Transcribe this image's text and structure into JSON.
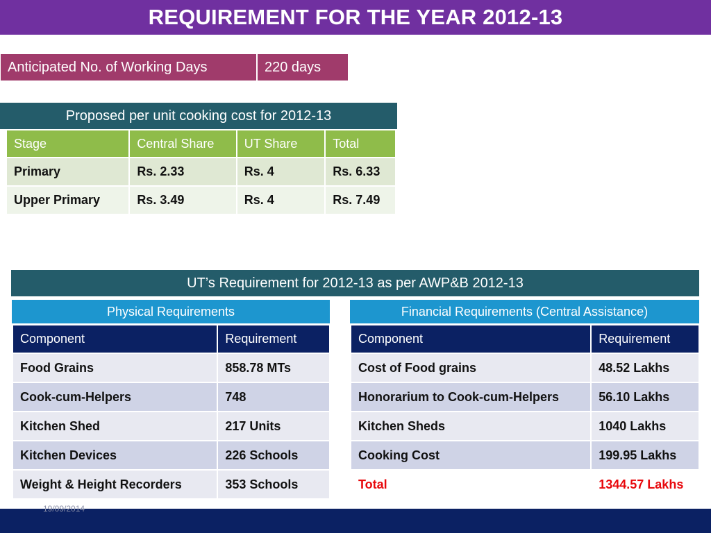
{
  "title": "REQUIREMENT FOR THE YEAR 2012-13",
  "working_days": {
    "label": "Anticipated No. of Working Days",
    "value": "220 days"
  },
  "cost_section": {
    "header": "Proposed per unit cooking cost for 2012-13",
    "columns": [
      "Stage",
      "Central Share",
      "UT Share",
      "Total"
    ],
    "rows": [
      [
        "Primary",
        "Rs. 2.33",
        "Rs. 4",
        "Rs. 6.33"
      ],
      [
        "Upper Primary",
        "Rs. 3.49",
        "Rs. 4",
        "Rs. 7.49"
      ]
    ]
  },
  "requirement_section": {
    "header": "UT’s Requirement for 2012-13 as per AWP&B 2012-13",
    "physical": {
      "header": "Physical Requirements",
      "columns": [
        "Component",
        "Requirement"
      ],
      "rows": [
        [
          "Food Grains",
          "858.78 MTs"
        ],
        [
          "Cook-cum-Helpers",
          "748"
        ],
        [
          "Kitchen Shed",
          "217 Units"
        ],
        [
          "Kitchen Devices",
          "226 Schools"
        ],
        [
          "Weight & Height Recorders",
          "353 Schools"
        ]
      ]
    },
    "financial": {
      "header": "Financial Requirements (Central Assistance)",
      "columns": [
        "Component",
        "Requirement"
      ],
      "rows": [
        [
          "Cost of Food grains",
          "48.52 Lakhs"
        ],
        [
          "Honorarium to Cook-cum-Helpers",
          "56.10  Lakhs"
        ],
        [
          "Kitchen Sheds",
          "1040   Lakhs"
        ],
        [
          "Cooking Cost",
          "199.95 Lakhs"
        ],
        [
          "Total",
          "1344.57 Lakhs"
        ]
      ]
    }
  },
  "footer": {
    "date": "19/09/2014"
  },
  "colors": {
    "title_bg": "#7030a0",
    "days_bg": "#a03b6b",
    "section_header_bg": "#245c6a",
    "cost_header_bg": "#8fbc4a",
    "sub_header_bg": "#1d96cf",
    "table_header_bg": "#0b2163",
    "total_text": "#e8080c"
  }
}
